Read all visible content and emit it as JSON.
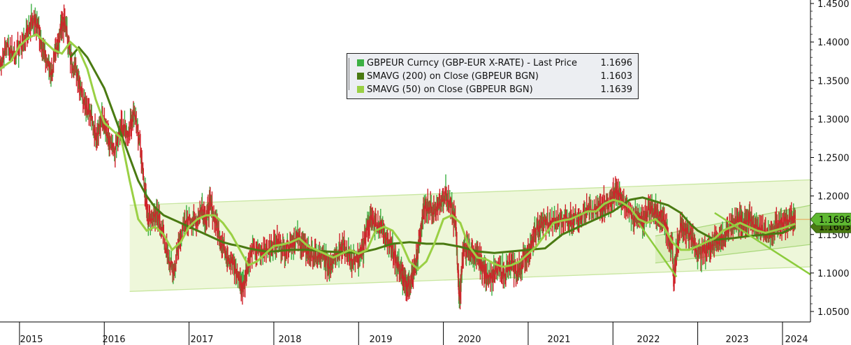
{
  "chart_data": {
    "type": "line",
    "y_axis": {
      "side": "right",
      "range": [
        1.03,
        1.45
      ],
      "ticks": [
        "1.4500",
        "1.4000",
        "1.3500",
        "1.3000",
        "1.2500",
        "1.2000",
        "1.1500",
        "1.1000",
        "1.0500"
      ],
      "tick_values": [
        1.45,
        1.4,
        1.35,
        1.3,
        1.25,
        1.2,
        1.15,
        1.1,
        1.05
      ]
    },
    "x_axis": {
      "range": [
        2014.77,
        2024.33
      ],
      "year_labels": [
        "2015",
        "2016",
        "2017",
        "2018",
        "2019",
        "2020",
        "2021",
        "2022",
        "2023",
        "2024"
      ],
      "year_starts": [
        2015,
        2016,
        2017,
        2018,
        2019,
        2020,
        2021,
        2022,
        2023,
        2024
      ]
    },
    "legend": {
      "placement": "top-center",
      "entries": [
        {
          "name": "GBPEUR Curncy (GBP-EUR X-RATE)  - Last Price",
          "value": "1.1696",
          "color": "#3cb043"
        },
        {
          "name": "SMAVG (200)  on Close (GBPEUR BGN)",
          "value": "1.1603",
          "color": "#4a7a12"
        },
        {
          "name": "SMAVG (50)  on Close (GBPEUR BGN)",
          "value": "1.1639",
          "color": "#9ad044"
        }
      ]
    },
    "badges": [
      {
        "label": "1.1696",
        "value": 1.1696,
        "color": "#5fb832"
      },
      {
        "label": "1.1603",
        "value": 1.1603,
        "color": "#4a7a12"
      }
    ],
    "series": [
      {
        "name": "GBPEUR Curncy (GBP-EUR X-RATE)  - Last Price",
        "color": "#d0222a",
        "x": [
          2014.77,
          2014.85,
          2014.95,
          2015.05,
          2015.15,
          2015.22,
          2015.3,
          2015.38,
          2015.45,
          2015.5,
          2015.55,
          2015.6,
          2015.68,
          2015.75,
          2015.82,
          2015.9,
          2015.98,
          2016.05,
          2016.12,
          2016.2,
          2016.28,
          2016.35,
          2016.42,
          2016.48,
          2016.52,
          2016.6,
          2016.68,
          2016.75,
          2016.82,
          2016.9,
          2017.0,
          2017.08,
          2017.15,
          2017.2,
          2017.25,
          2017.32,
          2017.38,
          2017.45,
          2017.52,
          2017.6,
          2017.63,
          2017.68,
          2017.75,
          2017.85,
          2017.95,
          2018.05,
          2018.12,
          2018.2,
          2018.28,
          2018.35,
          2018.42,
          2018.5,
          2018.58,
          2018.65,
          2018.72,
          2018.8,
          2018.9,
          2019.0,
          2019.05,
          2019.1,
          2019.15,
          2019.22,
          2019.3,
          2019.38,
          2019.45,
          2019.5,
          2019.55,
          2019.6,
          2019.65,
          2019.7,
          2019.75,
          2019.8,
          2019.88,
          2019.95,
          2020.02,
          2020.1,
          2020.15,
          2020.18,
          2020.2,
          2020.23,
          2020.28,
          2020.35,
          2020.4,
          2020.45,
          2020.5,
          2020.58,
          2020.65,
          2020.72,
          2020.8,
          2020.88,
          2020.95,
          2021.0,
          2021.05,
          2021.12,
          2021.2,
          2021.3,
          2021.4,
          2021.5,
          2021.6,
          2021.7,
          2021.8,
          2021.88,
          2021.95,
          2022.0,
          2022.05,
          2022.12,
          2022.2,
          2022.28,
          2022.35,
          2022.42,
          2022.5,
          2022.55,
          2022.6,
          2022.65,
          2022.7,
          2022.72,
          2022.75,
          2022.8,
          2022.88,
          2022.95,
          2023.02,
          2023.1,
          2023.18,
          2023.25,
          2023.32,
          2023.4,
          2023.48,
          2023.52,
          2023.58,
          2023.65,
          2023.72,
          2023.8,
          2023.88,
          2023.95,
          2024.02,
          2024.1,
          2024.15
        ],
        "y": [
          1.37,
          1.395,
          1.385,
          1.4,
          1.43,
          1.42,
          1.38,
          1.36,
          1.395,
          1.425,
          1.42,
          1.38,
          1.36,
          1.33,
          1.31,
          1.28,
          1.3,
          1.27,
          1.255,
          1.29,
          1.28,
          1.31,
          1.27,
          1.21,
          1.17,
          1.175,
          1.16,
          1.12,
          1.1,
          1.15,
          1.17,
          1.165,
          1.185,
          1.17,
          1.19,
          1.165,
          1.14,
          1.125,
          1.11,
          1.09,
          1.08,
          1.105,
          1.13,
          1.125,
          1.135,
          1.14,
          1.13,
          1.14,
          1.145,
          1.135,
          1.125,
          1.12,
          1.12,
          1.11,
          1.125,
          1.135,
          1.12,
          1.115,
          1.13,
          1.16,
          1.17,
          1.165,
          1.155,
          1.135,
          1.115,
          1.1,
          1.085,
          1.085,
          1.1,
          1.125,
          1.17,
          1.19,
          1.18,
          1.19,
          1.205,
          1.18,
          1.16,
          1.08,
          1.07,
          1.13,
          1.13,
          1.125,
          1.12,
          1.11,
          1.1,
          1.095,
          1.105,
          1.1,
          1.11,
          1.1,
          1.12,
          1.125,
          1.14,
          1.16,
          1.165,
          1.165,
          1.17,
          1.17,
          1.175,
          1.18,
          1.18,
          1.19,
          1.19,
          1.2,
          1.205,
          1.19,
          1.18,
          1.17,
          1.165,
          1.185,
          1.18,
          1.175,
          1.17,
          1.15,
          1.13,
          1.09,
          1.13,
          1.16,
          1.155,
          1.14,
          1.125,
          1.13,
          1.14,
          1.145,
          1.145,
          1.165,
          1.17,
          1.165,
          1.17,
          1.165,
          1.16,
          1.15,
          1.155,
          1.165,
          1.165,
          1.17,
          1.1696
        ]
      },
      {
        "name": "SMAVG (200)  on Close (GBPEUR BGN)",
        "color": "#4a7a12",
        "x": [
          2015.6,
          2015.7,
          2015.8,
          2015.9,
          2016.0,
          2016.1,
          2016.2,
          2016.3,
          2016.4,
          2016.5,
          2016.6,
          2016.7,
          2016.8,
          2016.9,
          2017.0,
          2017.1,
          2017.2,
          2017.3,
          2017.4,
          2017.5,
          2017.6,
          2017.7,
          2017.8,
          2017.9,
          2018.0,
          2018.2,
          2018.4,
          2018.6,
          2018.8,
          2019.0,
          2019.2,
          2019.4,
          2019.6,
          2019.8,
          2020.0,
          2020.2,
          2020.4,
          2020.6,
          2020.8,
          2021.0,
          2021.2,
          2021.4,
          2021.6,
          2021.8,
          2022.0,
          2022.2,
          2022.35,
          2022.5,
          2022.65,
          2022.8,
          2022.9,
          2023.0,
          2023.2,
          2023.4,
          2023.6,
          2023.8,
          2024.0,
          2024.15
        ],
        "y": [
          1.38,
          1.393,
          1.38,
          1.36,
          1.34,
          1.31,
          1.28,
          1.25,
          1.22,
          1.2,
          1.185,
          1.175,
          1.17,
          1.165,
          1.16,
          1.155,
          1.15,
          1.145,
          1.14,
          1.137,
          1.135,
          1.132,
          1.13,
          1.128,
          1.128,
          1.13,
          1.13,
          1.128,
          1.127,
          1.126,
          1.131,
          1.138,
          1.14,
          1.138,
          1.138,
          1.134,
          1.128,
          1.126,
          1.128,
          1.13,
          1.132,
          1.15,
          1.16,
          1.17,
          1.18,
          1.195,
          1.198,
          1.193,
          1.188,
          1.178,
          1.165,
          1.155,
          1.143,
          1.145,
          1.148,
          1.15,
          1.152,
          1.1603
        ]
      },
      {
        "name": "SMAVG (50)  on Close (GBPEUR BGN)",
        "color": "#9ad044",
        "x": [
          2014.77,
          2014.9,
          2015.0,
          2015.1,
          2015.2,
          2015.3,
          2015.4,
          2015.5,
          2015.6,
          2015.7,
          2015.8,
          2015.9,
          2016.0,
          2016.1,
          2016.2,
          2016.3,
          2016.4,
          2016.5,
          2016.6,
          2016.7,
          2016.8,
          2016.9,
          2017.0,
          2017.1,
          2017.2,
          2017.3,
          2017.4,
          2017.5,
          2017.6,
          2017.7,
          2017.8,
          2017.9,
          2018.0,
          2018.1,
          2018.2,
          2018.3,
          2018.4,
          2018.5,
          2018.6,
          2018.7,
          2018.8,
          2018.9,
          2019.0,
          2019.1,
          2019.2,
          2019.3,
          2019.4,
          2019.5,
          2019.6,
          2019.7,
          2019.8,
          2019.9,
          2020.0,
          2020.1,
          2020.2,
          2020.3,
          2020.4,
          2020.5,
          2020.6,
          2020.7,
          2020.8,
          2020.9,
          2021.0,
          2021.1,
          2021.2,
          2021.3,
          2021.4,
          2021.5,
          2021.6,
          2021.7,
          2021.8,
          2021.9,
          2022.0,
          2022.1,
          2022.2,
          2022.3,
          2022.4,
          2022.5,
          2022.6,
          2022.7,
          2022.8,
          2022.9,
          2023.0,
          2023.1,
          2023.2,
          2023.3,
          2023.4,
          2023.5,
          2023.6,
          2023.7,
          2023.8,
          2023.9,
          2024.0,
          2024.15
        ],
        "y": [
          1.365,
          1.375,
          1.395,
          1.405,
          1.41,
          1.4,
          1.39,
          1.385,
          1.4,
          1.39,
          1.365,
          1.325,
          1.295,
          1.285,
          1.275,
          1.22,
          1.17,
          1.155,
          1.16,
          1.15,
          1.13,
          1.14,
          1.16,
          1.17,
          1.175,
          1.175,
          1.165,
          1.15,
          1.13,
          1.11,
          1.115,
          1.125,
          1.135,
          1.137,
          1.14,
          1.145,
          1.135,
          1.13,
          1.125,
          1.12,
          1.125,
          1.13,
          1.125,
          1.13,
          1.155,
          1.16,
          1.155,
          1.14,
          1.115,
          1.105,
          1.115,
          1.14,
          1.17,
          1.175,
          1.165,
          1.135,
          1.12,
          1.118,
          1.112,
          1.108,
          1.11,
          1.115,
          1.125,
          1.135,
          1.15,
          1.165,
          1.168,
          1.17,
          1.175,
          1.18,
          1.18,
          1.19,
          1.195,
          1.192,
          1.185,
          1.17,
          1.165,
          1.17,
          1.16,
          1.14,
          1.13,
          1.13,
          1.135,
          1.14,
          1.145,
          1.155,
          1.16,
          1.165,
          1.16,
          1.155,
          1.152,
          1.155,
          1.158,
          1.1639
        ]
      }
    ],
    "trend_channel": {
      "color": "#c8e6a0",
      "lower": {
        "x": [
          2016.3,
          2024.33
        ],
        "y": [
          1.076,
          1.108
        ]
      },
      "upper": {
        "x": [
          2016.3,
          2024.33
        ],
        "y": [
          1.188,
          1.221
        ]
      }
    },
    "inner_channel": {
      "lower": {
        "x": [
          2022.5,
          2024.33
        ],
        "y": [
          1.113,
          1.137
        ]
      },
      "upper": {
        "x": [
          2022.5,
          2024.33
        ],
        "y": [
          1.148,
          1.188
        ]
      }
    },
    "trend_lines": [
      {
        "x": [
          2022.3,
          2022.75
        ],
        "y": [
          1.165,
          1.095
        ]
      },
      {
        "x": [
          2023.2,
          2024.33
        ],
        "y": [
          1.178,
          1.098
        ]
      }
    ]
  }
}
